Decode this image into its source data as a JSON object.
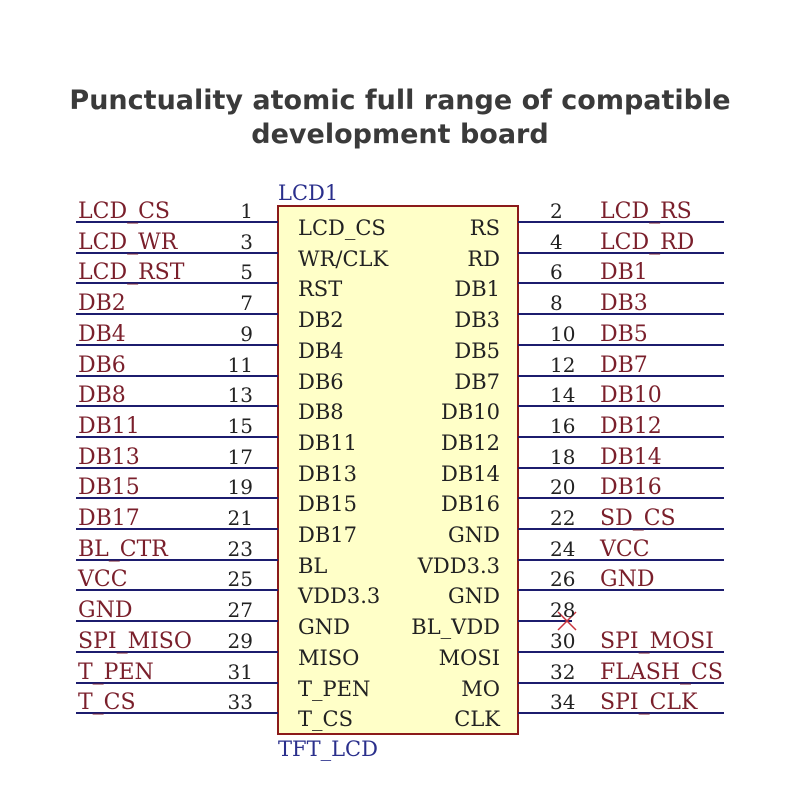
{
  "header": {
    "line1": "Punctuality atomic full range of compatible",
    "line2": "development board"
  },
  "component": {
    "reference": "LCD1",
    "value": "TFT_LCD",
    "body_fill": "#ffffc8",
    "body_stroke": "#8b1a1a",
    "wire_color": "#1c1c6e",
    "net_label_color": "#7a1f2b",
    "text_color": "#222222",
    "ref_color": "#2a2f8c"
  },
  "left_pins": [
    {
      "net": "LCD_CS",
      "num": "1",
      "name": "LCD_CS"
    },
    {
      "net": "LCD_WR",
      "num": "3",
      "name": "WR/CLK"
    },
    {
      "net": "LCD_RST",
      "num": "5",
      "name": "RST"
    },
    {
      "net": "DB2",
      "num": "7",
      "name": "DB2"
    },
    {
      "net": "DB4",
      "num": "9",
      "name": "DB4"
    },
    {
      "net": "DB6",
      "num": "11",
      "name": "DB6"
    },
    {
      "net": "DB8",
      "num": "13",
      "name": "DB8"
    },
    {
      "net": "DB11",
      "num": "15",
      "name": "DB11"
    },
    {
      "net": "DB13",
      "num": "17",
      "name": "DB13"
    },
    {
      "net": "DB15",
      "num": "19",
      "name": "DB15"
    },
    {
      "net": "DB17",
      "num": "21",
      "name": "DB17"
    },
    {
      "net": "BL_CTR",
      "num": "23",
      "name": "BL"
    },
    {
      "net": "VCC",
      "num": "25",
      "name": "VDD3.3"
    },
    {
      "net": "GND",
      "num": "27",
      "name": "GND"
    },
    {
      "net": "SPI_MISO",
      "num": "29",
      "name": "MISO"
    },
    {
      "net": "T_PEN",
      "num": "31",
      "name": "T_PEN"
    },
    {
      "net": "T_CS",
      "num": "33",
      "name": "T_CS"
    }
  ],
  "right_pins": [
    {
      "net": "LCD_RS",
      "num": "2",
      "name": "RS",
      "no_connect": false
    },
    {
      "net": "LCD_RD",
      "num": "4",
      "name": "RD",
      "no_connect": false
    },
    {
      "net": "DB1",
      "num": "6",
      "name": "DB1",
      "no_connect": false
    },
    {
      "net": "DB3",
      "num": "8",
      "name": "DB3",
      "no_connect": false
    },
    {
      "net": "DB5",
      "num": "10",
      "name": "DB5",
      "no_connect": false
    },
    {
      "net": "DB7",
      "num": "12",
      "name": "DB7",
      "no_connect": false
    },
    {
      "net": "DB10",
      "num": "14",
      "name": "DB10",
      "no_connect": false
    },
    {
      "net": "DB12",
      "num": "16",
      "name": "DB12",
      "no_connect": false
    },
    {
      "net": "DB14",
      "num": "18",
      "name": "DB14",
      "no_connect": false
    },
    {
      "net": "DB16",
      "num": "20",
      "name": "DB16",
      "no_connect": false
    },
    {
      "net": "SD_CS",
      "num": "22",
      "name": "GND",
      "no_connect": false
    },
    {
      "net": "VCC",
      "num": "24",
      "name": "VDD3.3",
      "no_connect": false
    },
    {
      "net": "GND",
      "num": "26",
      "name": "GND",
      "no_connect": false
    },
    {
      "net": "",
      "num": "28",
      "name": "BL_VDD",
      "no_connect": true
    },
    {
      "net": "SPI_MOSI",
      "num": "30",
      "name": "MOSI",
      "no_connect": false
    },
    {
      "net": "FLASH_CS",
      "num": "32",
      "name": "MO",
      "no_connect": false
    },
    {
      "net": "SPI_CLK",
      "num": "34",
      "name": "CLK",
      "no_connect": false
    }
  ]
}
